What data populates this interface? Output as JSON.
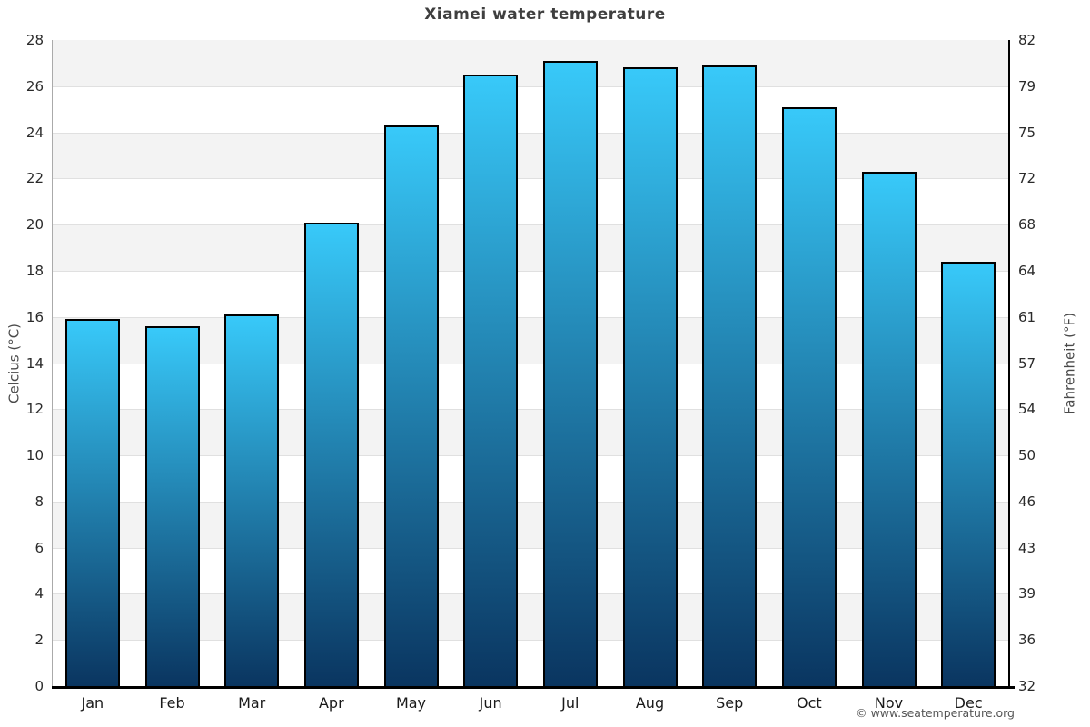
{
  "title": "Xiamei water temperature",
  "copyright": "© www.seatemperature.org",
  "chart_data": {
    "type": "bar",
    "title": "Xiamei water temperature",
    "categories": [
      "Jan",
      "Feb",
      "Mar",
      "Apr",
      "May",
      "Jun",
      "Jul",
      "Aug",
      "Sep",
      "Oct",
      "Nov",
      "Dec"
    ],
    "values": [
      15.9,
      15.6,
      16.1,
      20.1,
      24.3,
      26.5,
      27.1,
      26.8,
      26.9,
      25.1,
      22.3,
      18.4
    ],
    "series_name": "Water temperature",
    "xlabel": "",
    "ylabel_left": "Celcius (°C)",
    "ylabel_right": "Fahrenheit (°F)",
    "ylim": [
      0,
      28
    ],
    "ytick_step": 2,
    "yticks_celsius": [
      "0",
      "2",
      "4",
      "6",
      "8",
      "10",
      "12",
      "14",
      "16",
      "18",
      "20",
      "22",
      "24",
      "26",
      "28"
    ],
    "yticks_fahrenheit": [
      "32",
      "36",
      "39",
      "43",
      "46",
      "50",
      "54",
      "57",
      "61",
      "64",
      "68",
      "72",
      "75",
      "79",
      "82"
    ],
    "legend": "none",
    "grid": "alternating horizontal bands every 2 °C with thin gridlines",
    "colors": {
      "bar_gradient_top": "#38c9f9",
      "bar_gradient_bottom": "#0a3560",
      "bar_border": "#000000",
      "band_gray": "#f3f3f3",
      "band_white": "#ffffff",
      "gridline": "#e0e0e0",
      "axis_left": "#aaaaaa",
      "axis_black": "#000000",
      "title_text": "#3f3f3f",
      "tick_text": "#2a2a2a",
      "axis_label_text": "#4a4a4a",
      "copyright_text": "#555555"
    }
  }
}
